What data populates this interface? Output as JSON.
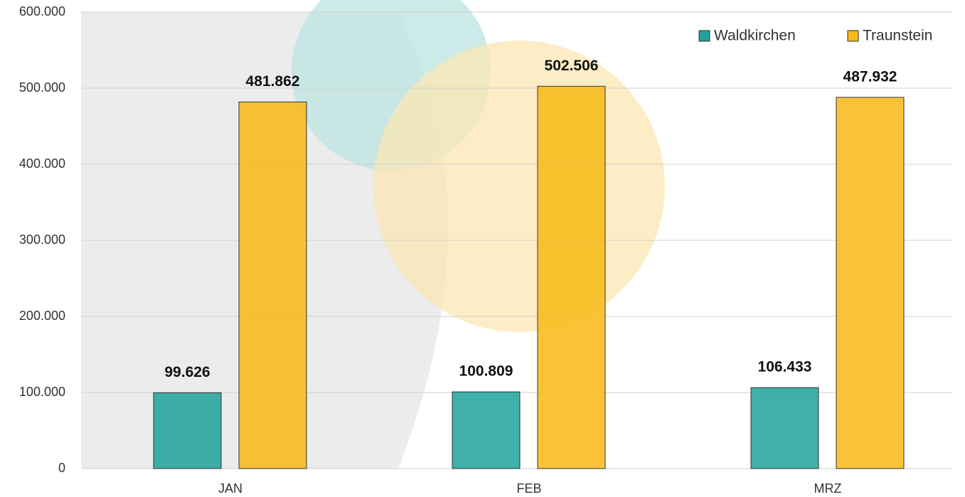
{
  "chart_data": {
    "type": "bar",
    "categories": [
      "JAN",
      "FEB",
      "MRZ"
    ],
    "series": [
      {
        "name": "Waldkirchen",
        "color": "#1fa39b",
        "values": [
          99626,
          100809,
          106433
        ],
        "value_labels": [
          "99.626",
          "100.809",
          "106.433"
        ]
      },
      {
        "name": "Traunstein",
        "color": "#f9b914",
        "values": [
          481862,
          502506,
          487932
        ],
        "value_labels": [
          "481.862",
          "502.506",
          "487.932"
        ]
      }
    ],
    "ylim": [
      0,
      600000
    ],
    "yticks": [
      0,
      {
        "value": 100000,
        "label": "100.000"
      },
      {
        "value": 200000,
        "label": "200.000"
      },
      {
        "value": 300000,
        "label": "300.000"
      },
      {
        "value": 400000,
        "label": "400.000"
      },
      {
        "value": 500000,
        "label": "500.000"
      },
      {
        "value": 600000,
        "label": "600.000"
      }
    ],
    "grid": true,
    "legend": "top-right"
  }
}
